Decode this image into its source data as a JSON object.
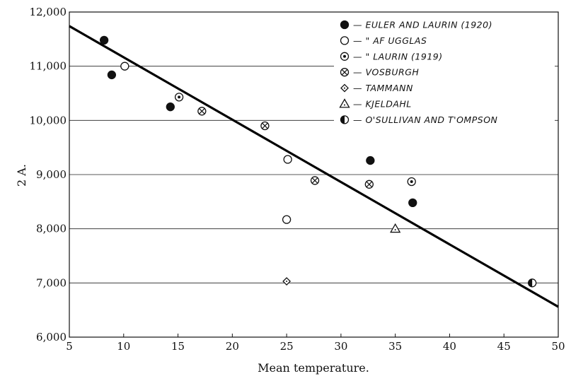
{
  "chart_data": {
    "type": "scatter",
    "title": "",
    "xlabel": "Mean temperature.",
    "ylabel": "2 A.",
    "xlim": [
      5,
      50
    ],
    "ylim": [
      6000,
      12000
    ],
    "x_ticks": [
      "5",
      "10",
      "15",
      "20",
      "25",
      "30",
      "35",
      "40",
      "45",
      "50"
    ],
    "y_ticks": [
      "6,000",
      "7,000",
      "8,000",
      "9,000",
      "10,000",
      "11,000",
      "12,000"
    ],
    "grid": "horizontal",
    "legend_position": "top-right",
    "series": [
      {
        "name": "EULER AND LAURIN (1920)",
        "legend_label": "— EULER AND LAURIN (1920)",
        "marker": "filled-circle",
        "points": [
          [
            8.2,
            11480
          ],
          [
            8.9,
            10840
          ],
          [
            14.3,
            10250
          ],
          [
            32.7,
            9260
          ],
          [
            36.6,
            8480
          ]
        ]
      },
      {
        "name": "AF UGGLAS",
        "legend_label": "—    \"         AF UGGLAS",
        "marker": "open-circle",
        "points": [
          [
            10.1,
            11000
          ],
          [
            25.1,
            9280
          ],
          [
            25.0,
            8170
          ]
        ]
      },
      {
        "name": "LAURIN (1919)",
        "legend_label": "—    \"         LAURIN (1919)",
        "marker": "dot-circle",
        "points": [
          [
            15.1,
            10430
          ],
          [
            36.5,
            8870
          ]
        ]
      },
      {
        "name": "VOSBURGH",
        "legend_label": "— VOSBURGH",
        "marker": "x-circle",
        "points": [
          [
            17.2,
            10170
          ],
          [
            23.0,
            9900
          ],
          [
            27.6,
            8890
          ],
          [
            32.6,
            8820
          ]
        ]
      },
      {
        "name": "TAMMANN",
        "legend_label": "— TAMMANN",
        "marker": "open-diamond",
        "points": [
          [
            25.0,
            7030
          ]
        ]
      },
      {
        "name": "KJELDAHL",
        "legend_label": "— KJELDAHL",
        "marker": "open-triangle",
        "points": [
          [
            35.0,
            8000
          ]
        ]
      },
      {
        "name": "O'SULLIVAN AND T'OMPSON",
        "legend_label": "— O'SULLIVAN AND T'OMPSON",
        "marker": "half-circle",
        "points": [
          [
            47.6,
            7000
          ]
        ]
      }
    ],
    "trend_line": {
      "x": [
        5,
        50
      ],
      "y": [
        11740,
        6560
      ]
    },
    "colors": {
      "ink": "#111111",
      "background": "#ffffff"
    }
  }
}
